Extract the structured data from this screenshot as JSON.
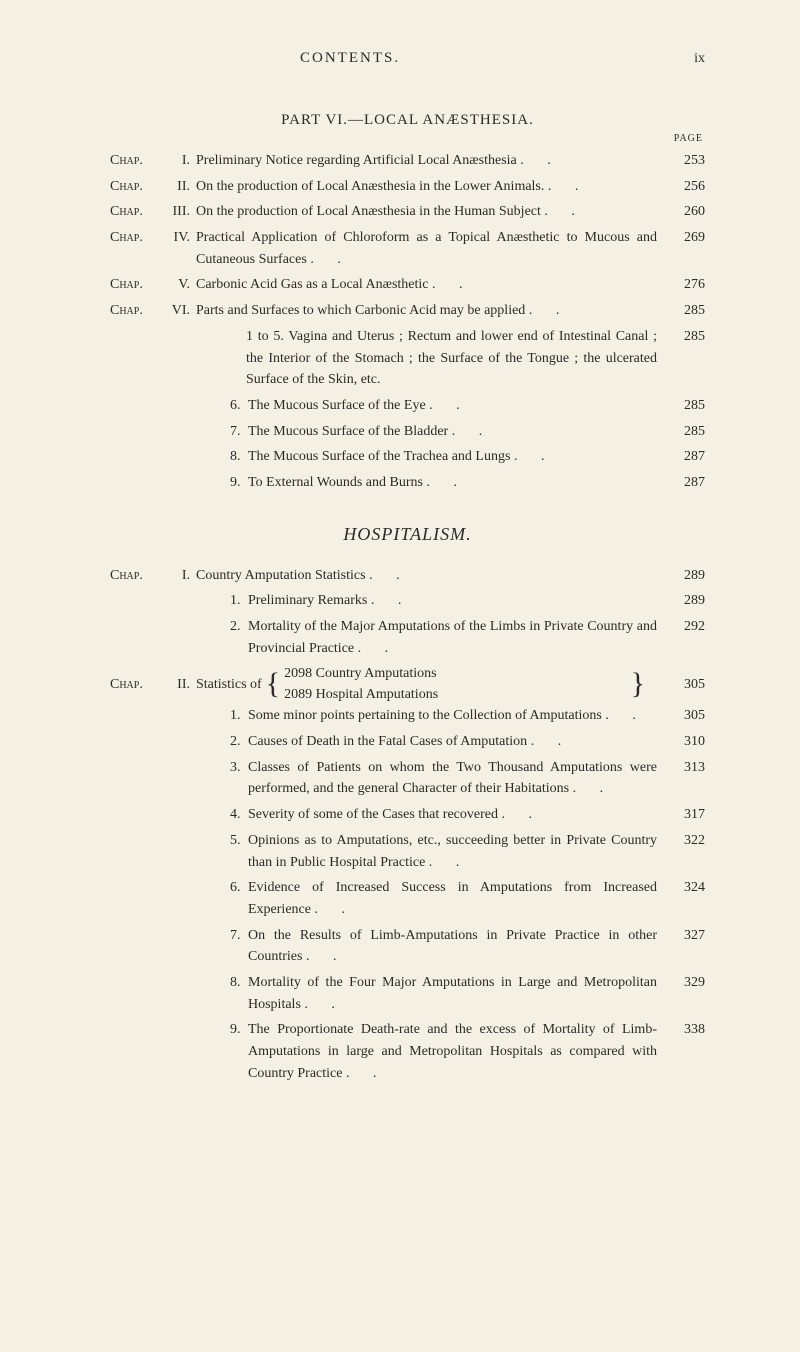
{
  "header": {
    "contents": "CONTENTS.",
    "pageNum": "ix"
  },
  "part6": {
    "title": "PART VI.—LOCAL ANÆSTHESIA.",
    "pageLabel": "PAGE",
    "entries": [
      {
        "chap": "Chap.",
        "roman": "I.",
        "text": "Preliminary Notice regarding Artificial Local Anæsthesia",
        "page": "253"
      },
      {
        "chap": "Chap.",
        "roman": "II.",
        "text": "On the production of Local Anæsthesia in the Lower Animals.",
        "page": "256"
      },
      {
        "chap": "Chap.",
        "roman": "III.",
        "text": "On the production of Local Anæsthesia in the Human Subject",
        "page": "260"
      },
      {
        "chap": "Chap.",
        "roman": "IV.",
        "text": "Practical Application of Chloroform as a Topical Anæsthetic to Mucous and Cutaneous Surfaces",
        "page": "269"
      },
      {
        "chap": "Chap.",
        "roman": "V.",
        "text": "Carbonic Acid Gas as a Local Anæsthetic",
        "page": "276"
      },
      {
        "chap": "Chap.",
        "roman": "VI.",
        "text": "Parts and Surfaces to which Carbonic Acid may be applied",
        "page": "285"
      }
    ],
    "subEntries": {
      "intro": "1 to 5. Vagina and Uterus ; Rectum and lower end of Intestinal Canal ; the Interior of the Stomach ; the Surface of the Tongue ; the ulcerated Surface of the Skin, etc.",
      "introPage": "285",
      "items": [
        {
          "num": "6.",
          "text": "The Mucous Surface of the Eye",
          "page": "285"
        },
        {
          "num": "7.",
          "text": "The Mucous Surface of the Bladder",
          "page": "285"
        },
        {
          "num": "8.",
          "text": "The Mucous Surface of the Trachea and Lungs",
          "page": "287"
        },
        {
          "num": "9.",
          "text": "To External Wounds and Burns",
          "page": "287"
        }
      ]
    }
  },
  "hospitalism": {
    "title": "HOSPITALISM.",
    "entries": [
      {
        "chap": "Chap.",
        "roman": "I.",
        "text": "Country Amputation Statistics",
        "page": "289"
      }
    ],
    "sub1": [
      {
        "num": "1.",
        "text": "Preliminary Remarks",
        "page": "289"
      },
      {
        "num": "2.",
        "text": "Mortality of the Major Amputations of the Limbs in Private Country and Provincial Practice",
        "page": "292"
      }
    ],
    "entries2": {
      "chap": "Chap.",
      "roman": "II.",
      "prefix": "Statistics of",
      "line1": "2098 Country Amputations",
      "line2": "2089 Hospital Amputations",
      "page": "305"
    },
    "sub2": [
      {
        "num": "1.",
        "text": "Some minor points pertaining to the Collection of Amputations",
        "page": "305"
      },
      {
        "num": "2.",
        "text": "Causes of Death in the Fatal Cases of Amputation",
        "page": "310"
      },
      {
        "num": "3.",
        "text": "Classes of Patients on whom the Two Thousand Amputations were performed, and the general Character of their Habitations",
        "page": "313"
      },
      {
        "num": "4.",
        "text": "Severity of some of the Cases that recovered",
        "page": "317"
      },
      {
        "num": "5.",
        "text": "Opinions as to Amputations, etc., succeeding better in Private Country than in Public Hospital Practice",
        "page": "322"
      },
      {
        "num": "6.",
        "text": "Evidence of Increased Success in Amputations from Increased Experience",
        "page": "324"
      },
      {
        "num": "7.",
        "text": "On the Results of Limb-Amputations in Private Practice in other Countries",
        "page": "327"
      },
      {
        "num": "8.",
        "text": "Mortality of the Four Major Amputations in Large and Metropolitan Hospitals",
        "page": "329"
      },
      {
        "num": "9.",
        "text": "The Proportionate Death-rate and the excess of Mortality of Limb-Amputations in large and Metropolitan Hospitals as compared with Country Practice",
        "page": "338"
      }
    ]
  }
}
